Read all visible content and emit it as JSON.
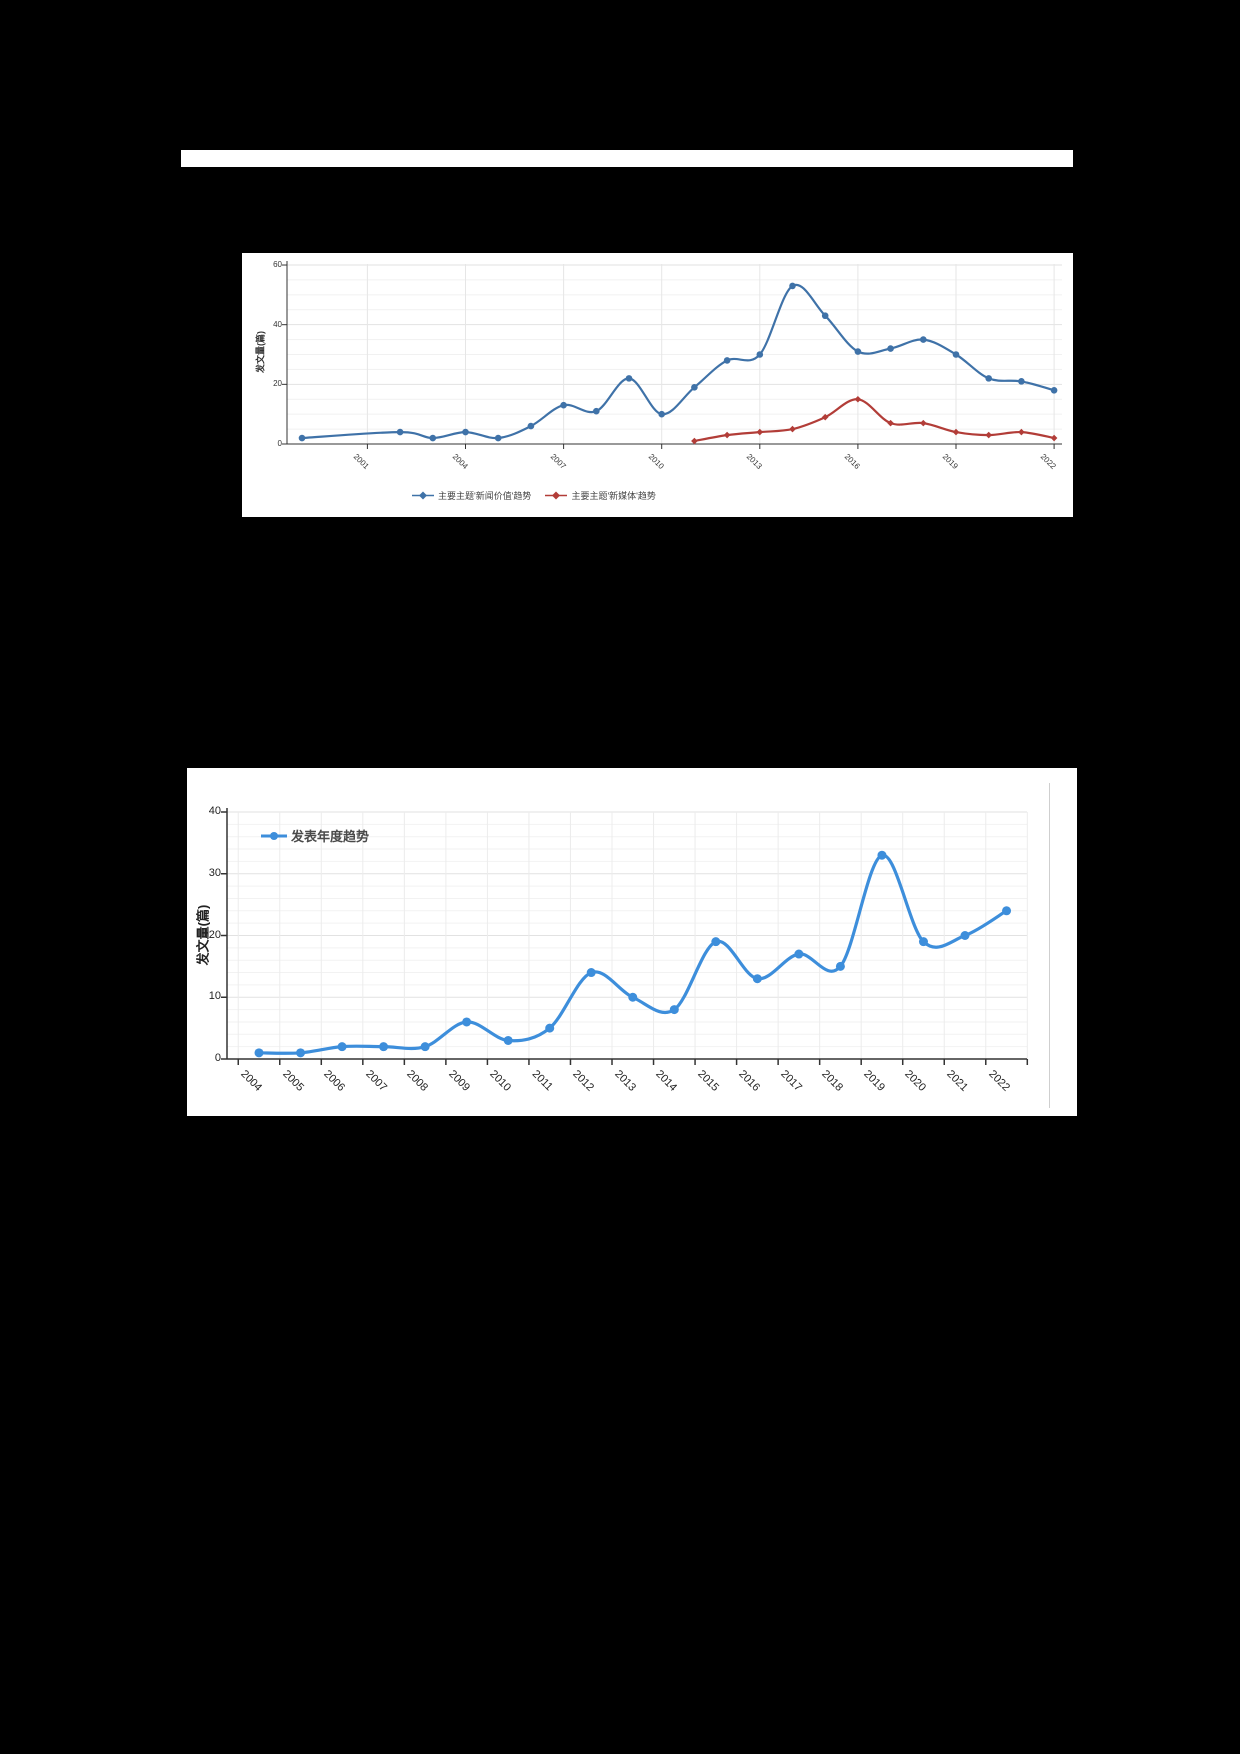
{
  "page": {
    "background": "#000000",
    "panel_background": "#ffffff"
  },
  "chart_data": [
    {
      "type": "line",
      "title": "",
      "ylabel": "发文量(篇)",
      "ylim": [
        0,
        60
      ],
      "yticks": [
        0,
        20,
        40,
        60
      ],
      "xticks": [
        2001,
        2004,
        2007,
        2010,
        2013,
        2016,
        2019,
        2022
      ],
      "x_range": [
        1999,
        2022
      ],
      "grid": "on",
      "legend_position": "bottom-center",
      "series": [
        {
          "name": "主要主题'新闻价值'趋势",
          "color": "#3f72a8",
          "symbol": "circle",
          "x": [
            1999,
            2002,
            2003,
            2004,
            2005,
            2006,
            2007,
            2008,
            2009,
            2010,
            2011,
            2012,
            2013,
            2014,
            2015,
            2016,
            2017,
            2018,
            2019,
            2020,
            2021,
            2022
          ],
          "values": [
            2,
            4,
            2,
            4,
            2,
            6,
            13,
            11,
            22,
            10,
            19,
            28,
            30,
            53,
            43,
            31,
            32,
            35,
            30,
            22,
            21,
            18
          ]
        },
        {
          "name": "主要主题'新媒体'趋势",
          "color": "#b23d38",
          "symbol": "diamond",
          "x": [
            2011,
            2012,
            2013,
            2014,
            2015,
            2016,
            2017,
            2018,
            2019,
            2020,
            2021,
            2022
          ],
          "values": [
            1,
            3,
            4,
            5,
            9,
            15,
            7,
            7,
            4,
            3,
            4,
            2
          ]
        }
      ]
    },
    {
      "type": "line",
      "title": "",
      "ylabel": "发文量(篇)",
      "ylim": [
        0,
        40
      ],
      "yticks": [
        0,
        10,
        20,
        30,
        40
      ],
      "categories": [
        "2004",
        "2005",
        "2006",
        "2007",
        "2008",
        "2009",
        "2010",
        "2011",
        "2012",
        "2013",
        "2014",
        "2015",
        "2016",
        "2017",
        "2018",
        "2019",
        "2020",
        "2021",
        "2022"
      ],
      "grid": "on",
      "legend_position": "top-left",
      "series": [
        {
          "name": "发表年度趋势",
          "color": "#3d8edb",
          "symbol": "circle",
          "values": [
            1,
            1,
            2,
            2,
            2,
            6,
            3,
            5,
            14,
            10,
            8,
            19,
            13,
            17,
            15,
            33,
            19,
            20,
            24
          ]
        }
      ]
    }
  ]
}
